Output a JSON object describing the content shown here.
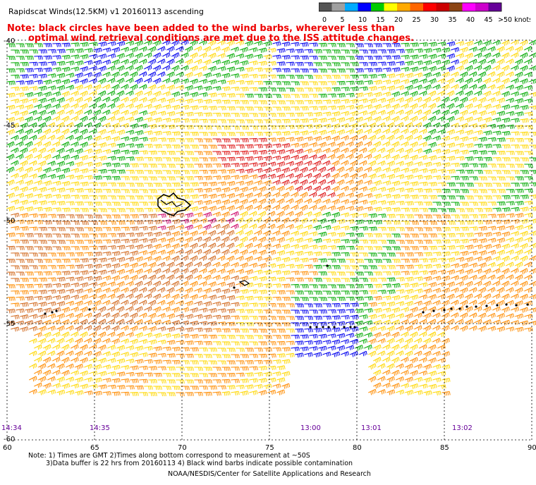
{
  "title": "Rapidscat Winds(12.5KM) v1 20160113 ascending",
  "note_line1": "Note: black circles have been added to the wind barbs, wherever less than",
  "note_line2": "optimal wind retrieval conditions are met due to the ISS attitude changes.",
  "legend": {
    "unit": ">50 knots",
    "ticks": [
      "0",
      "5",
      "10",
      "15",
      "20",
      "25",
      "30",
      "35",
      "40",
      "45"
    ],
    "colors": [
      "#555555",
      "#a0a0a0",
      "#00aaff",
      "#0000ff",
      "#00cc00",
      "#ffff00",
      "#ffaa00",
      "#ff6600",
      "#ff0000",
      "#cc0000",
      "#8b4513",
      "#ff00ff",
      "#cc00cc",
      "#660099"
    ]
  },
  "lat_labels": [
    "-40",
    "-45",
    "-50",
    "-55",
    "-60"
  ],
  "lon_labels": [
    "60",
    "65",
    "70",
    "75",
    "80",
    "85",
    "90"
  ],
  "time_labels": [
    "14:34",
    "14:35",
    "13:00",
    "13:01",
    "13:02"
  ],
  "footer_line1": "Note: 1) Times are GMT 2)Times along bottom correspond to measurement at ~50S",
  "footer_line2": "3)Data buffer is 22 hrs from 20160113 4) Black wind barbs indicate possible contamination",
  "footer_line3": "NOAA/NESDIS/Center for Satellite Applications and Research",
  "wind_colors": {
    "blue": "#0000ee",
    "green": "#00aa00",
    "yellow": "#ffd700",
    "orange": "#ff8c00",
    "darkorange": "#d2691e",
    "red": "#dd1111",
    "magenta": "#cc0066"
  }
}
